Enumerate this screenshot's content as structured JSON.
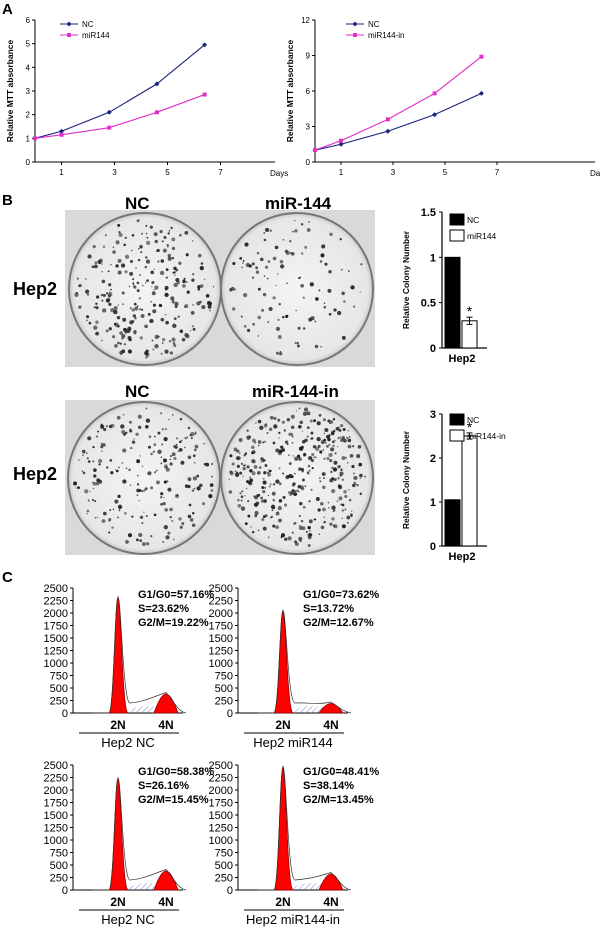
{
  "panel_labels": [
    "A",
    "B",
    "C"
  ],
  "panel_a": {
    "ylabel": "Relative MTT absorbance",
    "xlabel": "Days"
  },
  "panel_b": {
    "row_label": "Hep2",
    "plate_top": {
      "left": "NC",
      "right": "miR-144"
    },
    "plate_bottom": {
      "left": "NC",
      "right": "miR-144-in"
    }
  },
  "panel_c": {
    "peak_labels": [
      "2N",
      "4N"
    ]
  },
  "chart_data": [
    {
      "id": "mtt-mir144",
      "type": "line",
      "x": [
        0,
        1,
        2.8,
        4.6,
        6.4
      ],
      "xticks": [
        1,
        3,
        5,
        7
      ],
      "xlabel": "Days",
      "ylabel": "Relative MTT absorbance",
      "ylim": [
        0,
        6
      ],
      "yticks": [
        0,
        1,
        2,
        3,
        4,
        5,
        6
      ],
      "series": [
        {
          "name": "NC",
          "color": "#1a237e",
          "marker": "diamond",
          "values": [
            1.0,
            1.3,
            2.1,
            3.3,
            4.95
          ]
        },
        {
          "name": "miR144",
          "color": "#e030c8",
          "marker": "square",
          "values": [
            1.0,
            1.15,
            1.45,
            2.1,
            2.85
          ]
        }
      ]
    },
    {
      "id": "mtt-mir144-in",
      "type": "line",
      "x": [
        0,
        1,
        2.8,
        4.6,
        6.4
      ],
      "xticks": [
        1,
        3,
        5,
        7
      ],
      "xlabel": "Days",
      "ylabel": "Relative MTT absorbance",
      "ylim": [
        0,
        12
      ],
      "yticks": [
        0,
        3,
        6,
        9,
        12
      ],
      "series": [
        {
          "name": "NC",
          "color": "#1a237e",
          "marker": "diamond",
          "values": [
            1.0,
            1.5,
            2.6,
            4.0,
            5.8
          ]
        },
        {
          "name": "miR144-in",
          "color": "#e030c8",
          "marker": "square",
          "values": [
            1.0,
            1.8,
            3.6,
            5.8,
            8.9
          ]
        }
      ]
    },
    {
      "id": "colony-mir144",
      "type": "bar",
      "categories": [
        "Hep2"
      ],
      "ylabel": "Relative Colony Number",
      "ylim": [
        0,
        1.5
      ],
      "yticks": [
        0,
        0.5,
        1.0,
        1.5
      ],
      "series": [
        {
          "name": "NC",
          "color": "#000000",
          "values": [
            1.0
          ]
        },
        {
          "name": "miR144",
          "color": "#ffffff",
          "values": [
            0.3
          ],
          "error": [
            0.04
          ],
          "annotation": "*"
        }
      ]
    },
    {
      "id": "colony-mir144-in",
      "type": "bar",
      "categories": [
        "Hep2"
      ],
      "ylabel": "Relative Colony Number",
      "ylim": [
        0,
        3
      ],
      "yticks": [
        0,
        1,
        2,
        3
      ],
      "series": [
        {
          "name": "NC",
          "color": "#000000",
          "values": [
            1.05
          ]
        },
        {
          "name": "miR144-in",
          "color": "#ffffff",
          "values": [
            2.5
          ],
          "error": [
            0.07
          ],
          "annotation": "*"
        }
      ]
    },
    {
      "id": "cycle-nc-1",
      "type": "area",
      "xlabel": "Hep2 NC",
      "ylim": [
        0,
        2500
      ],
      "yticks": [
        0,
        250,
        500,
        750,
        1000,
        1250,
        1500,
        1750,
        2000,
        2250,
        2500
      ],
      "peak_heights": [
        2300,
        380
      ],
      "stats": [
        "G1/G0=57.16%",
        "S=23.62%",
        "G2/M=19.22%"
      ]
    },
    {
      "id": "cycle-mir144",
      "type": "area",
      "xlabel": "Hep2 miR144",
      "ylim": [
        0,
        2500
      ],
      "yticks": [
        0,
        250,
        500,
        750,
        1000,
        1250,
        1500,
        1750,
        2000,
        2250,
        2500
      ],
      "peak_heights": [
        2030,
        190
      ],
      "stats": [
        "G1/G0=73.62%",
        "S=13.72%",
        "G2/M=12.67%"
      ]
    },
    {
      "id": "cycle-nc-2",
      "type": "area",
      "xlabel": "Hep2 NC",
      "ylim": [
        0,
        2500
      ],
      "yticks": [
        0,
        250,
        500,
        750,
        1000,
        1250,
        1500,
        1750,
        2000,
        2250,
        2500
      ],
      "peak_heights": [
        2220,
        380
      ],
      "stats": [
        "G1/G0=58.38%",
        "S=26.16%",
        "G2/M=15.45%"
      ]
    },
    {
      "id": "cycle-mir144-in",
      "type": "area",
      "xlabel": "Hep2 miR144-in",
      "ylim": [
        0,
        2500
      ],
      "yticks": [
        0,
        250,
        500,
        750,
        1000,
        1250,
        1500,
        1750,
        2000,
        2250,
        2500
      ],
      "peak_heights": [
        2450,
        320
      ],
      "stats": [
        "G1/G0=48.41%",
        "S=38.14%",
        "G2/M=13.45%"
      ]
    }
  ]
}
